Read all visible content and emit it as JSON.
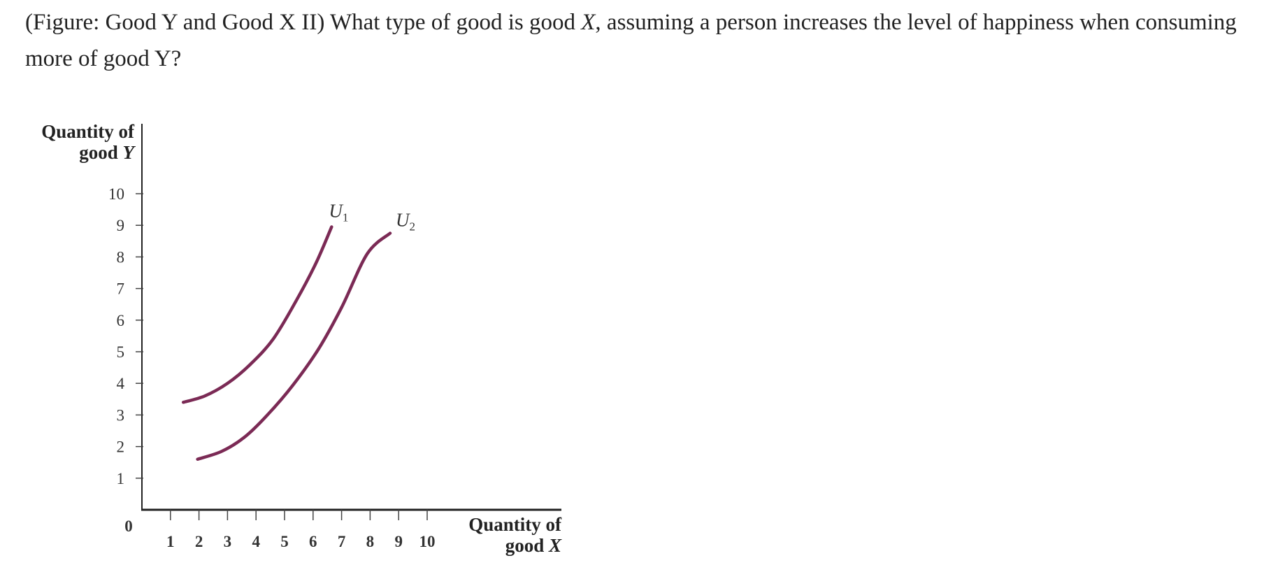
{
  "question": {
    "part1": "(Figure: Good Y and Good X II) What type of good is good ",
    "part2": "X",
    "part3": ", assuming a person increases the level of happiness when consuming more of good Y?"
  },
  "chart_data": {
    "type": "line",
    "xlabel_line1": "Quantity of",
    "xlabel_line2_prefix": "good ",
    "xlabel_line2_var": "X",
    "ylabel_line1": "Quantity of",
    "ylabel_line2_prefix": "good ",
    "ylabel_line2_var": "Y",
    "origin_label": "0",
    "xlim": [
      0,
      10
    ],
    "ylim": [
      0,
      10
    ],
    "x_ticks": [
      1,
      2,
      3,
      4,
      5,
      6,
      7,
      8,
      9,
      10
    ],
    "y_ticks": [
      1,
      2,
      3,
      4,
      5,
      6,
      7,
      8,
      9,
      10
    ],
    "grid": false,
    "line_color": "#7b2a55",
    "series": [
      {
        "name": "U",
        "subscript": "1",
        "points": [
          [
            1.45,
            3.4
          ],
          [
            2.2,
            3.6
          ],
          [
            3.0,
            4.0
          ],
          [
            3.8,
            4.6
          ],
          [
            4.6,
            5.4
          ],
          [
            5.4,
            6.6
          ],
          [
            6.1,
            7.8
          ],
          [
            6.65,
            8.95
          ]
        ]
      },
      {
        "name": "U",
        "subscript": "2",
        "points": [
          [
            1.95,
            1.6
          ],
          [
            2.8,
            1.85
          ],
          [
            3.6,
            2.3
          ],
          [
            4.4,
            3.0
          ],
          [
            5.3,
            3.95
          ],
          [
            6.2,
            5.1
          ],
          [
            7.0,
            6.4
          ],
          [
            7.9,
            8.1
          ],
          [
            8.7,
            8.75
          ]
        ]
      }
    ]
  }
}
